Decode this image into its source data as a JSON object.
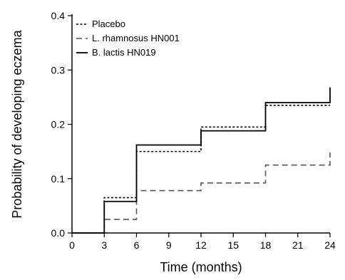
{
  "chart_data": {
    "type": "line",
    "title": "",
    "xlabel": "Time (months)",
    "ylabel": "Probability of developing eczema",
    "xlim": [
      0,
      24
    ],
    "ylim": [
      0,
      0.4
    ],
    "xticks": [
      0,
      3,
      6,
      9,
      12,
      15,
      18,
      21,
      24
    ],
    "yticks": [
      0.0,
      0.1,
      0.2,
      0.3,
      0.4
    ],
    "xtick_labels": [
      "0",
      "3",
      "6",
      "9",
      "12",
      "15",
      "18",
      "21",
      "24"
    ],
    "ytick_labels": [
      "0.0",
      "0.1",
      "0.2",
      "0.3",
      "0.4"
    ],
    "grid": false,
    "legend_position": "top-left",
    "step": true,
    "series": [
      {
        "name": "Placebo",
        "style": "dotted",
        "color": "#000000",
        "x": [
          0,
          3,
          6,
          12,
          18,
          24
        ],
        "y": [
          0.0,
          0.065,
          0.15,
          0.195,
          0.235,
          0.235
        ]
      },
      {
        "name": "L. rhamnosus HN001",
        "style": "dashed",
        "color": "#555555",
        "x": [
          0,
          3,
          6,
          12,
          18,
          24
        ],
        "y": [
          0.0,
          0.025,
          0.078,
          0.092,
          0.125,
          0.148
        ]
      },
      {
        "name": "B. lactis HN019",
        "style": "solid",
        "color": "#000000",
        "x": [
          0,
          3,
          6,
          12,
          18,
          24
        ],
        "y": [
          0.0,
          0.058,
          0.162,
          0.188,
          0.24,
          0.268
        ]
      }
    ]
  }
}
